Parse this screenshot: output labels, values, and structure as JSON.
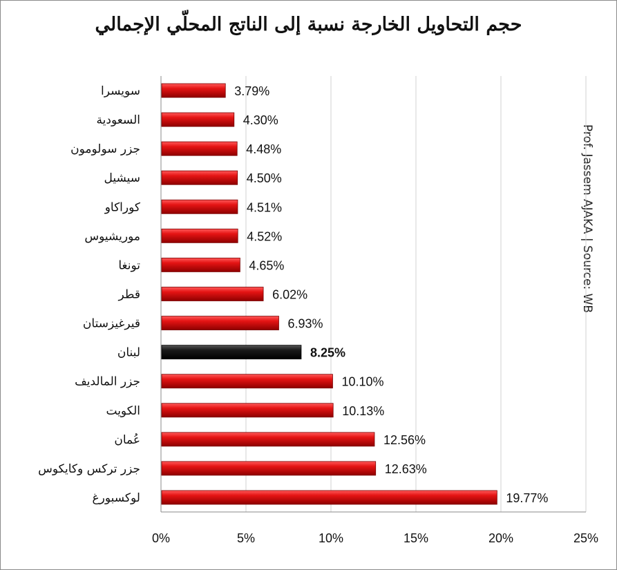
{
  "chart_data": {
    "type": "bar",
    "orientation": "horizontal",
    "title": "حجم التحاويل الخارجة نسبة إلى الناتج المحلّي الإجمالي",
    "source_note": "Prof. Jassem AJAKA | Source: WB",
    "categories": [
      "سويسرا",
      "السعودية",
      "جزر سولومون",
      "سيشيل",
      "كوراكاو",
      "موريشيوس",
      "تونغا",
      "قطر",
      "قيرغيزستان",
      "لبنان",
      "جزر المالديف",
      "الكويت",
      "عُمان",
      "جزر تركس وكايكوس",
      "لوكسبورغ"
    ],
    "values": [
      3.79,
      4.3,
      4.48,
      4.5,
      4.51,
      4.52,
      4.65,
      6.02,
      6.93,
      8.25,
      10.1,
      10.13,
      12.56,
      12.63,
      19.77
    ],
    "value_labels": [
      "3.79%",
      "4.30%",
      "4.48%",
      "4.50%",
      "4.51%",
      "4.52%",
      "4.65%",
      "6.02%",
      "6.93%",
      "8.25%",
      "10.10%",
      "10.13%",
      "12.56%",
      "12.63%",
      "19.77%"
    ],
    "highlight_category": "لبنان",
    "x_ticks": [
      0,
      5,
      10,
      15,
      20,
      25
    ],
    "x_tick_labels": [
      "0%",
      "5%",
      "10%",
      "15%",
      "20%",
      "25%"
    ],
    "xlim": [
      0,
      25
    ],
    "grid": true,
    "legend": "none",
    "colors": {
      "bar": "#e01010",
      "bar_dark": "#7a0000",
      "highlight": "#111111",
      "grid": "#d0d0d0",
      "axis": "#8a8a8a"
    }
  }
}
